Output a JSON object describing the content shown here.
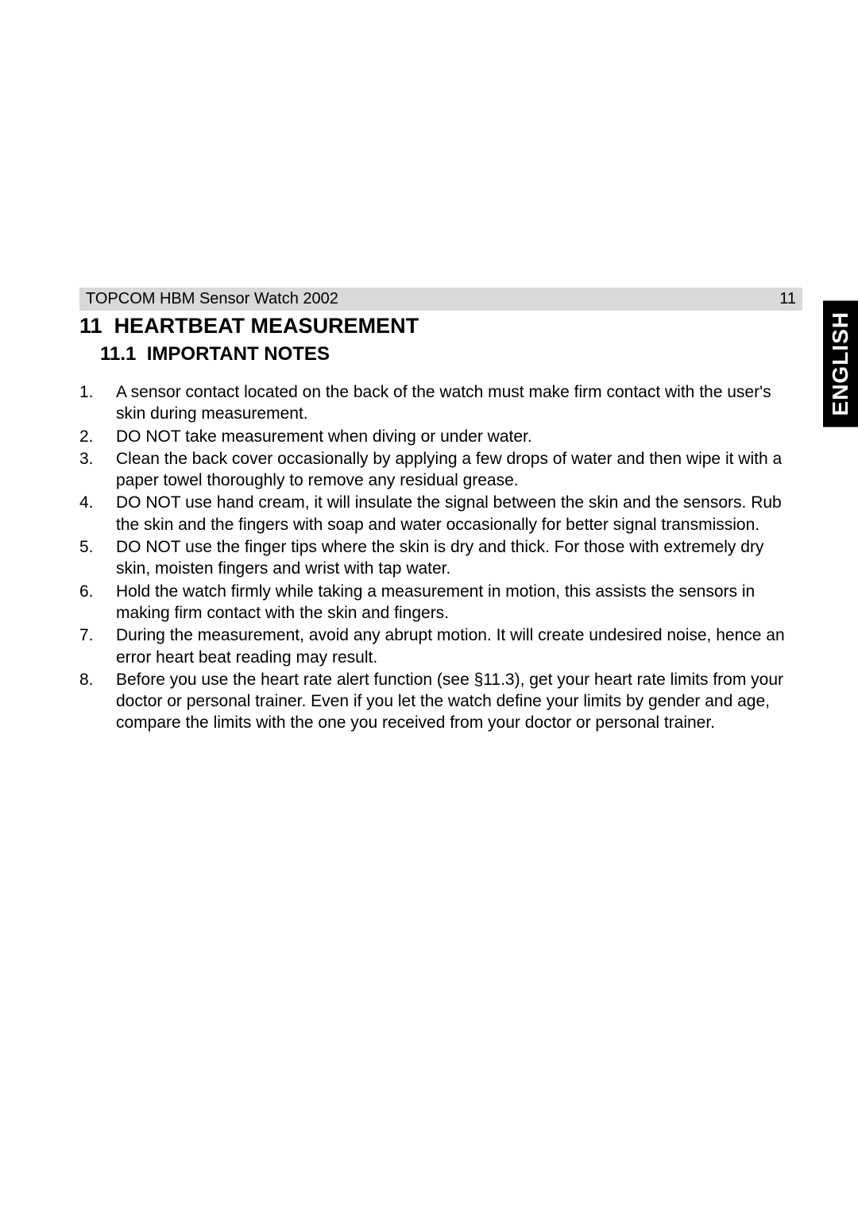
{
  "header": {
    "title": "TOPCOM HBM Sensor Watch 2002",
    "page_number": "11",
    "bar_bg_color": "#d9d9d9"
  },
  "section": {
    "number": "11",
    "title": "HEARTBEAT MEASUREMENT",
    "title_fontsize": 27,
    "title_weight": "bold"
  },
  "subsection": {
    "number": "11.1",
    "title": "IMPORTANT NOTES",
    "title_fontsize": 24,
    "title_weight": "bold"
  },
  "notes": [
    {
      "num": "1.",
      "text": "A sensor contact located on the back of the watch must make firm contact with the user's skin during measurement."
    },
    {
      "num": "2.",
      "text": "DO NOT take measurement when diving or under water."
    },
    {
      "num": "3.",
      "text": "Clean the back cover occasionally by applying a few drops of water and then wipe it with a paper towel thoroughly to remove any residual grease."
    },
    {
      "num": "4.",
      "text": "DO NOT use hand cream, it will insulate the signal between the skin and the sensors. Rub the skin and the fingers with soap and water occasionally for better signal transmission."
    },
    {
      "num": "5.",
      "text": "DO NOT use the finger tips where the skin is dry and thick. For those with extremely dry skin, moisten fingers and wrist with tap water."
    },
    {
      "num": "6.",
      "text": "Hold the watch firmly while taking a measurement in motion, this assists the sensors in making firm contact with the skin and fingers."
    },
    {
      "num": "7.",
      "text": "During the measurement, avoid any abrupt motion. It will create undesired noise, hence an error heart beat reading may result."
    },
    {
      "num": "8.",
      "text": "Before you use the heart rate alert function (see §11.3), get your heart rate limits from your doctor or personal trainer. Even if you let the watch define your limits by gender and age, compare the limits with the one you received from your doctor or personal trainer."
    }
  ],
  "body_text": {
    "fontsize": 21,
    "color": "#000000",
    "line_height": 1.3
  },
  "side_tab": {
    "label": "ENGLISH",
    "bg_color": "#000000",
    "text_color": "#ffffff",
    "fontsize": 28
  },
  "page_bg": "#ffffff"
}
